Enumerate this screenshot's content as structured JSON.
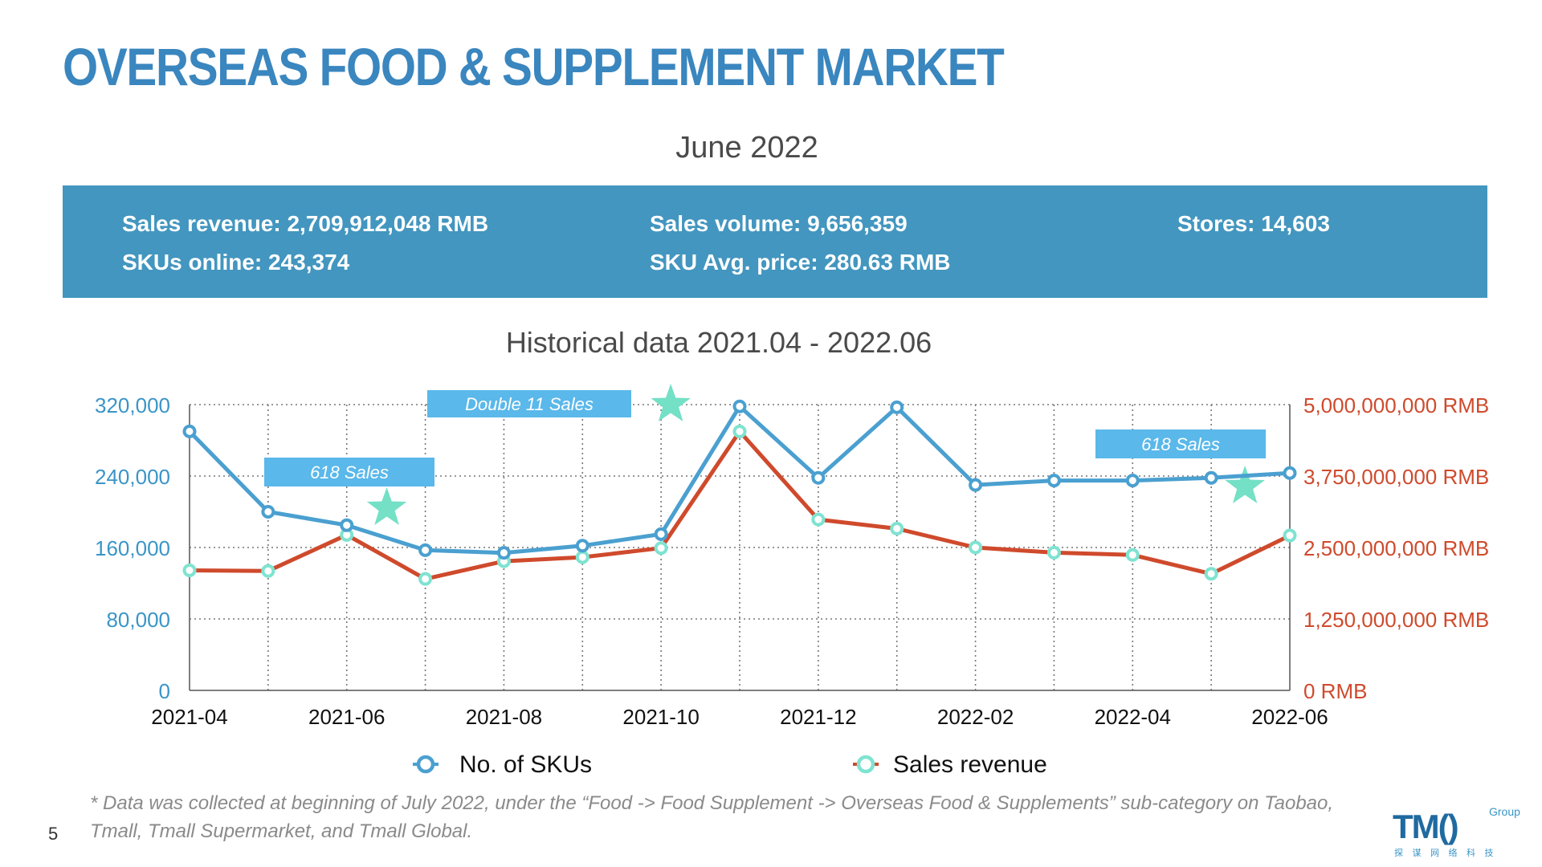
{
  "header": {
    "title": "OVERSEAS FOOD & SUPPLEMENT MARKET",
    "subtitle": "June 2022"
  },
  "stats": {
    "sales_revenue": "Sales revenue: 2,709,912,048 RMB",
    "sales_volume": "Sales volume: 9,656,359",
    "stores": "Stores: 14,603",
    "skus_online": "SKUs online: 243,374",
    "sku_avg_price": "SKU Avg. price: 280.63 RMB"
  },
  "historical_title": "Historical data 2021.04 - 2022.06",
  "footnote": "* Data was collected at beginning of July 2022, under the “Food -> Food Supplement -> Overseas Food & Supplements” sub-category on Taobao, Tmall, Tmall Supermarket, and Tmall Global.",
  "page_number": "5",
  "logo": {
    "text": "TM()",
    "group": "Group",
    "tagline": "探 谋 网 络 科 技"
  },
  "colors": {
    "banner": "#4396bf",
    "title": "#3a86bf",
    "skus_line": "#4aa0d0",
    "revenue_line": "#cf4a2c",
    "revenue_marker": "#7fe3d1",
    "annotation_box": "#5ab8ea",
    "star": "#74e0c6",
    "left_axis": "#3a95c7",
    "right_axis": "#cf4a2c"
  },
  "chart_data": {
    "type": "line",
    "x": [
      "2021-04",
      "2021-05",
      "2021-06",
      "2021-07",
      "2021-08",
      "2021-09",
      "2021-10",
      "2021-11",
      "2021-12",
      "2022-01",
      "2022-02",
      "2022-03",
      "2022-04",
      "2022-05",
      "2022-06"
    ],
    "x_tick_labels": [
      "2021-04",
      "2021-06",
      "2021-08",
      "2021-10",
      "2021-12",
      "2022-02",
      "2022-04",
      "2022-06"
    ],
    "series": [
      {
        "name": "No. of SKUs",
        "axis": "left",
        "values": [
          290000,
          200000,
          185000,
          157000,
          154000,
          162000,
          175000,
          318000,
          238000,
          317000,
          230000,
          235000,
          235000,
          238000,
          243374
        ]
      },
      {
        "name": "Sales revenue",
        "axis": "right",
        "values": [
          2100000000,
          2090000000,
          2720000000,
          1950000000,
          2260000000,
          2330000000,
          2490000000,
          4530000000,
          2990000000,
          2830000000,
          2500000000,
          2410000000,
          2370000000,
          2040000000,
          2709912048
        ]
      }
    ],
    "y_left": {
      "ylim": [
        0,
        320000
      ],
      "ticks": [
        "0",
        "80,000",
        "160,000",
        "240,000",
        "320,000"
      ]
    },
    "y_right": {
      "ylim": [
        0,
        5000000000
      ],
      "ticks": [
        "0 RMB",
        "1,250,000,000 RMB",
        "2,500,000,000 RMB",
        "3,750,000,000 RMB",
        "5,000,000,000 RMB"
      ]
    },
    "grid": true,
    "legend": {
      "placement": "bottom",
      "entries": [
        "No. of SKUs",
        "Sales revenue"
      ]
    },
    "annotations": [
      {
        "label": "618 Sales",
        "x": "2021-06",
        "star_x": "2021-07"
      },
      {
        "label": "Double 11 Sales",
        "x": "2021-08",
        "star_x": "2021-10"
      },
      {
        "label": "618 Sales",
        "x": "2022-05",
        "star_x": "2022-05"
      }
    ]
  }
}
